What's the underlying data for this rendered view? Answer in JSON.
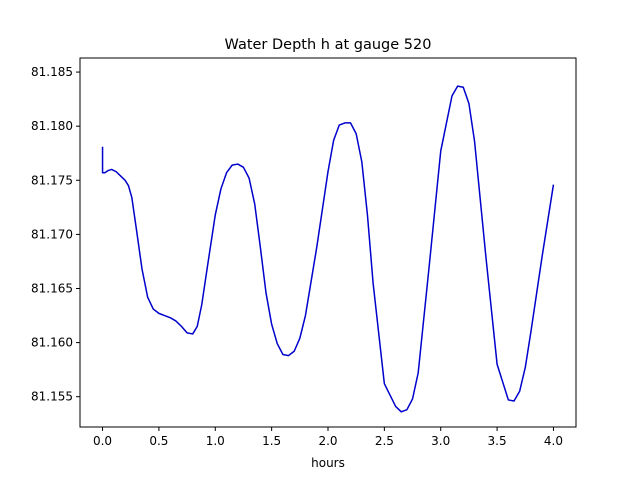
{
  "chart_data": {
    "type": "line",
    "title": "Water Depth h at gauge 520",
    "xlabel": "hours",
    "ylabel": "",
    "xlim": [
      -0.2,
      4.2
    ],
    "ylim": [
      81.1522,
      81.1863
    ],
    "xticks": [
      0.0,
      0.5,
      1.0,
      1.5,
      2.0,
      2.5,
      3.0,
      3.5,
      4.0
    ],
    "xtick_labels": [
      "0.0",
      "0.5",
      "1.0",
      "1.5",
      "2.0",
      "2.5",
      "3.0",
      "3.5",
      "4.0"
    ],
    "yticks": [
      81.155,
      81.16,
      81.165,
      81.17,
      81.175,
      81.18,
      81.185
    ],
    "ytick_labels": [
      "81.155",
      "81.160",
      "81.165",
      "81.170",
      "81.175",
      "81.180",
      "81.185"
    ],
    "grid": false,
    "legend": "none",
    "series": [
      {
        "color": "#0000cc",
        "x": [
          0.0,
          0.0,
          0.02,
          0.05,
          0.08,
          0.12,
          0.16,
          0.2,
          0.23,
          0.26,
          0.3,
          0.35,
          0.4,
          0.45,
          0.5,
          0.55,
          0.6,
          0.65,
          0.7,
          0.75,
          0.8,
          0.84,
          0.88,
          0.93,
          1.0,
          1.05,
          1.1,
          1.15,
          1.2,
          1.25,
          1.3,
          1.35,
          1.4,
          1.45,
          1.5,
          1.55,
          1.6,
          1.65,
          1.7,
          1.75,
          1.8,
          1.9,
          2.0,
          2.05,
          2.1,
          2.15,
          2.2,
          2.25,
          2.3,
          2.35,
          2.4,
          2.5,
          2.6,
          2.65,
          2.7,
          2.75,
          2.8,
          2.9,
          3.0,
          3.1,
          3.15,
          3.2,
          3.25,
          3.3,
          3.4,
          3.5,
          3.6,
          3.65,
          3.7,
          3.75,
          3.8,
          3.9,
          4.0
        ],
        "y": [
          81.1781,
          81.1757,
          81.1757,
          81.1759,
          81.176,
          81.1758,
          81.1754,
          81.175,
          81.1745,
          81.1734,
          81.1705,
          81.1668,
          81.1642,
          81.1631,
          81.1627,
          81.1625,
          81.1623,
          81.162,
          81.1615,
          81.1609,
          81.1608,
          81.1615,
          81.1635,
          81.167,
          81.1718,
          81.1742,
          81.1757,
          81.1764,
          81.1765,
          81.1762,
          81.1752,
          81.1728,
          81.1688,
          81.1646,
          81.1617,
          81.1599,
          81.1589,
          81.1588,
          81.1592,
          81.1604,
          81.1625,
          81.1688,
          81.1758,
          81.1787,
          81.1801,
          81.1803,
          81.1803,
          81.1793,
          81.1767,
          81.1718,
          81.1655,
          81.1562,
          81.1541,
          81.1536,
          81.1538,
          81.1548,
          81.1572,
          81.1673,
          81.1777,
          81.1828,
          81.1837,
          81.1836,
          81.1821,
          81.1786,
          81.168,
          81.158,
          81.1547,
          81.1546,
          81.1555,
          81.1577,
          81.161,
          81.168,
          81.1746
        ]
      }
    ]
  }
}
